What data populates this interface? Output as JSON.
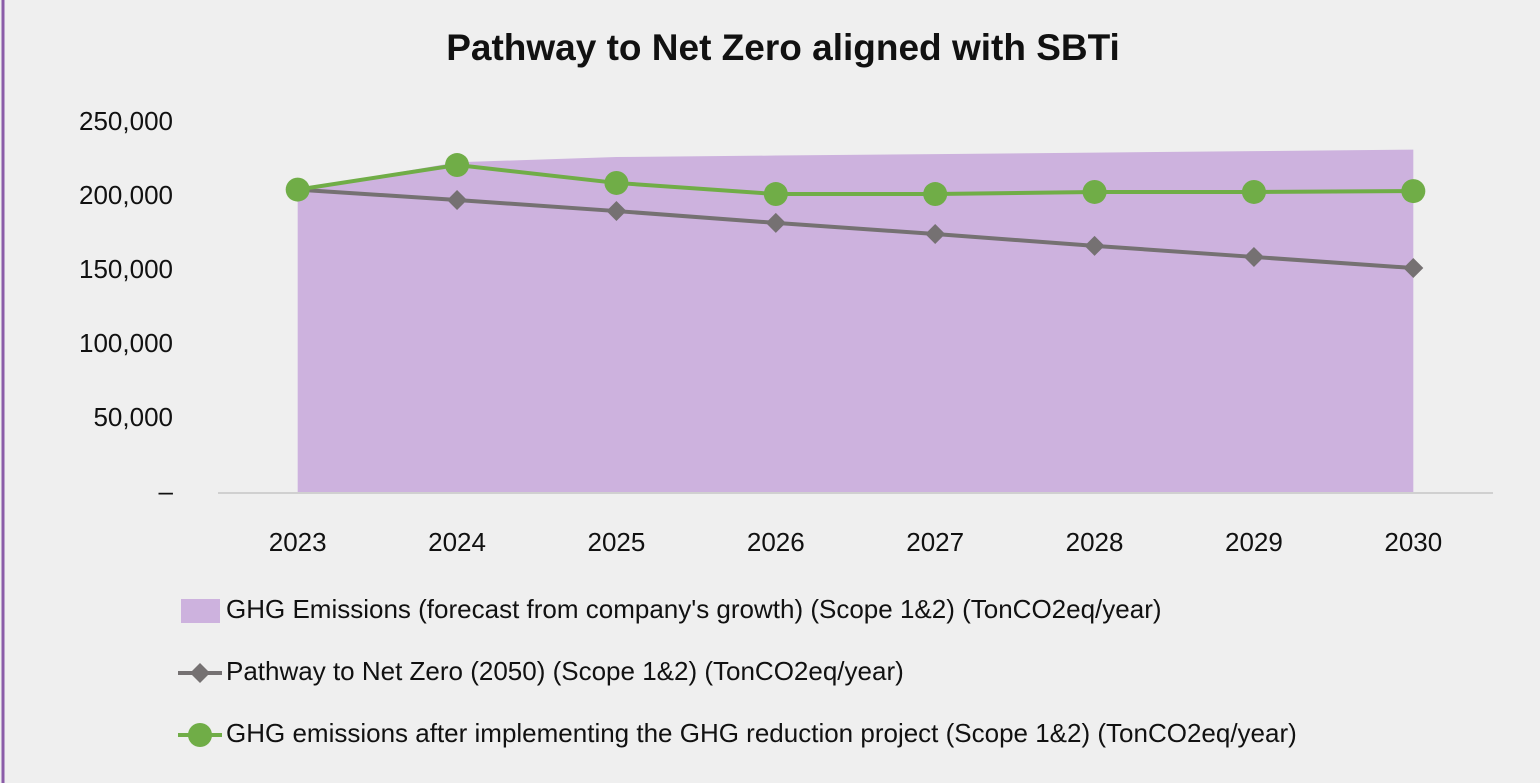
{
  "chart_data": {
    "type": "line",
    "title": "Pathway to Net Zero aligned with SBTi",
    "categories": [
      "2023",
      "2024",
      "2025",
      "2026",
      "2027",
      "2028",
      "2029",
      "2030"
    ],
    "series": [
      {
        "name": "GHG Emissions (forecast from company's growth) (Scope 1&2) (TonCO2eq/year)",
        "kind": "area",
        "color": "#cdb2de",
        "values": [
          205000,
          223500,
          227000,
          228000,
          229000,
          230000,
          231000,
          232000
        ]
      },
      {
        "name": "Pathway to Net Zero (2050) (Scope 1&2) (TonCO2eq/year)",
        "kind": "line",
        "marker": "diamond",
        "color": "#757172",
        "values": [
          205000,
          198000,
          190500,
          182500,
          175000,
          167000,
          159500,
          152000
        ]
      },
      {
        "name": "GHG emissions after implementing the GHG reduction project (Scope 1&2) (TonCO2eq/year)",
        "kind": "line",
        "marker": "circle",
        "color": "#70ad47",
        "values": [
          205000,
          221600,
          209500,
          202000,
          202000,
          203400,
          203400,
          204000
        ]
      }
    ],
    "ylim": [
      0,
      250000
    ],
    "yticks": [
      {
        "value": 0,
        "label": "–"
      },
      {
        "value": 50000,
        "label": "50,000"
      },
      {
        "value": 100000,
        "label": "100,000"
      },
      {
        "value": 150000,
        "label": "150,000"
      },
      {
        "value": 200000,
        "label": "200,000"
      },
      {
        "value": 250000,
        "label": "250,000"
      }
    ],
    "legend": "bottom"
  }
}
